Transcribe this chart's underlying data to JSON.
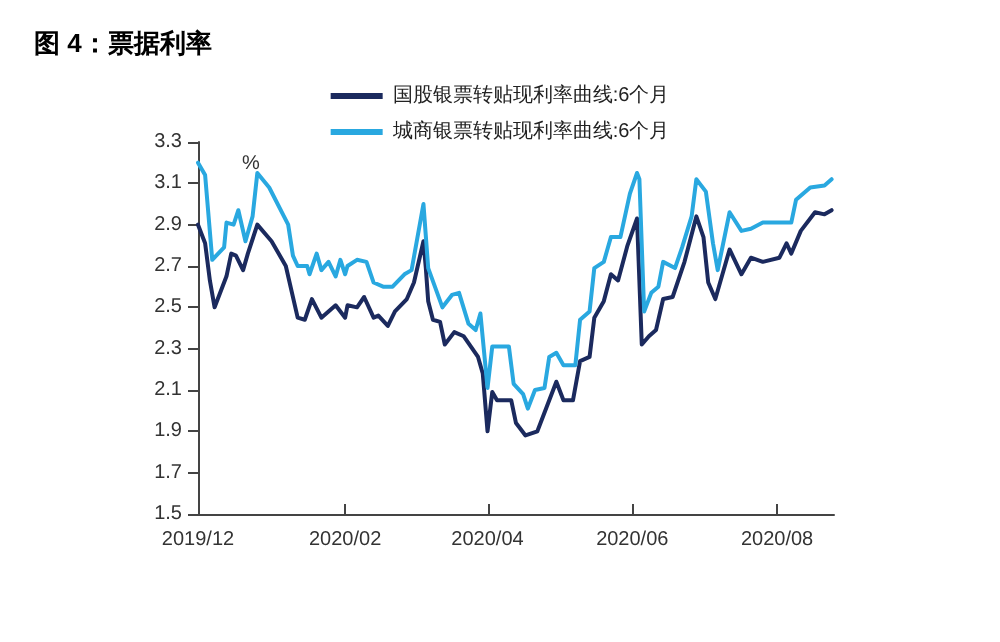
{
  "chart_data": {
    "type": "line",
    "title": "图 4：票据利率",
    "ylabel": "%",
    "legend": "top",
    "grid": false,
    "marker": "none",
    "line_style": "solid",
    "xlim": [
      "2019-12-01",
      "2020-08-25"
    ],
    "xticks": [
      {
        "value": "2019-12-01",
        "label": "2019/12"
      },
      {
        "value": "2020-02-01",
        "label": "2020/02"
      },
      {
        "value": "2020-04-01",
        "label": "2020/04"
      },
      {
        "value": "2020-06-01",
        "label": "2020/06"
      },
      {
        "value": "2020-08-01",
        "label": "2020/08"
      }
    ],
    "ylim": [
      1.5,
      3.3
    ],
    "yticks": [
      1.5,
      1.7,
      1.9,
      2.1,
      2.3,
      2.5,
      2.7,
      2.9,
      3.1,
      3.3
    ],
    "series": [
      {
        "name": "国股银票转贴现利率曲线:6个月",
        "color": "#1b2a5e",
        "x": [
          "2019-12-01",
          "2019-12-04",
          "2019-12-06",
          "2019-12-08",
          "2019-12-13",
          "2019-12-15",
          "2019-12-17",
          "2019-12-20",
          "2019-12-22",
          "2019-12-26",
          "2020-01-01",
          "2020-01-07",
          "2020-01-12",
          "2020-01-15",
          "2020-01-18",
          "2020-01-22",
          "2020-01-28",
          "2020-02-01",
          "2020-02-02",
          "2020-02-06",
          "2020-02-09",
          "2020-02-13",
          "2020-02-15",
          "2020-02-19",
          "2020-02-22",
          "2020-02-27",
          "2020-03-01",
          "2020-03-05",
          "2020-03-06",
          "2020-03-07",
          "2020-03-09",
          "2020-03-12",
          "2020-03-14",
          "2020-03-18",
          "2020-03-22",
          "2020-03-28",
          "2020-03-30",
          "2020-04-01",
          "2020-04-03",
          "2020-04-05",
          "2020-04-11",
          "2020-04-13",
          "2020-04-17",
          "2020-04-22",
          "2020-04-26",
          "2020-04-30",
          "2020-05-03",
          "2020-05-07",
          "2020-05-10",
          "2020-05-14",
          "2020-05-16",
          "2020-05-20",
          "2020-05-23",
          "2020-05-26",
          "2020-05-30",
          "2020-06-03",
          "2020-06-05",
          "2020-06-08",
          "2020-06-11",
          "2020-06-14",
          "2020-06-18",
          "2020-06-23",
          "2020-06-28",
          "2020-07-01",
          "2020-07-03",
          "2020-07-06",
          "2020-07-12",
          "2020-07-17",
          "2020-07-21",
          "2020-07-26",
          "2020-08-02",
          "2020-08-05",
          "2020-08-07",
          "2020-08-11",
          "2020-08-17",
          "2020-08-21",
          "2020-08-24"
        ],
        "values": [
          2.9,
          2.81,
          2.63,
          2.5,
          2.65,
          2.76,
          2.75,
          2.68,
          2.76,
          2.9,
          2.82,
          2.7,
          2.45,
          2.44,
          2.54,
          2.45,
          2.51,
          2.45,
          2.51,
          2.5,
          2.55,
          2.45,
          2.46,
          2.41,
          2.48,
          2.54,
          2.62,
          2.82,
          2.69,
          2.53,
          2.44,
          2.43,
          2.32,
          2.38,
          2.36,
          2.26,
          2.18,
          1.9,
          2.09,
          2.05,
          2.05,
          1.94,
          1.88,
          1.9,
          2.02,
          2.14,
          2.05,
          2.05,
          2.24,
          2.26,
          2.45,
          2.53,
          2.66,
          2.63,
          2.8,
          2.93,
          2.32,
          2.36,
          2.39,
          2.54,
          2.55,
          2.72,
          2.94,
          2.84,
          2.62,
          2.54,
          2.78,
          2.66,
          2.74,
          2.72,
          2.74,
          2.81,
          2.76,
          2.87,
          2.96,
          2.95,
          2.97
        ]
      },
      {
        "name": "城商银票转贴现利率曲线:6个月",
        "color": "#29a8e0",
        "x": [
          "2019-12-01",
          "2019-12-04",
          "2019-12-07",
          "2019-12-12",
          "2019-12-13",
          "2019-12-16",
          "2019-12-18",
          "2019-12-21",
          "2019-12-24",
          "2019-12-26",
          "2019-12-31",
          "2020-01-08",
          "2020-01-10",
          "2020-01-12",
          "2020-01-16",
          "2020-01-17",
          "2020-01-20",
          "2020-01-22",
          "2020-01-25",
          "2020-01-28",
          "2020-01-30",
          "2020-02-01",
          "2020-02-02",
          "2020-02-06",
          "2020-02-10",
          "2020-02-13",
          "2020-02-17",
          "2020-02-21",
          "2020-02-26",
          "2020-02-29",
          "2020-03-05",
          "2020-03-07",
          "2020-03-13",
          "2020-03-17",
          "2020-03-20",
          "2020-03-24",
          "2020-03-27",
          "2020-03-29",
          "2020-04-01",
          "2020-04-03",
          "2020-04-10",
          "2020-04-12",
          "2020-04-16",
          "2020-04-18",
          "2020-04-21",
          "2020-04-25",
          "2020-04-27",
          "2020-04-30",
          "2020-05-03",
          "2020-05-08",
          "2020-05-10",
          "2020-05-14",
          "2020-05-16",
          "2020-05-20",
          "2020-05-23",
          "2020-05-27",
          "2020-05-31",
          "2020-06-03",
          "2020-06-04",
          "2020-06-06",
          "2020-06-09",
          "2020-06-12",
          "2020-06-14",
          "2020-06-19",
          "2020-06-22",
          "2020-06-26",
          "2020-06-28",
          "2020-07-02",
          "2020-07-05",
          "2020-07-07",
          "2020-07-12",
          "2020-07-17",
          "2020-07-21",
          "2020-07-26",
          "2020-08-02",
          "2020-08-07",
          "2020-08-09",
          "2020-08-15",
          "2020-08-21",
          "2020-08-24"
        ],
        "values": [
          3.2,
          3.14,
          2.73,
          2.79,
          2.91,
          2.9,
          2.97,
          2.82,
          2.94,
          3.15,
          3.08,
          2.9,
          2.75,
          2.7,
          2.7,
          2.66,
          2.76,
          2.68,
          2.72,
          2.65,
          2.73,
          2.66,
          2.7,
          2.73,
          2.72,
          2.62,
          2.6,
          2.6,
          2.66,
          2.68,
          3.0,
          2.69,
          2.5,
          2.56,
          2.57,
          2.42,
          2.39,
          2.47,
          2.11,
          2.31,
          2.31,
          2.13,
          2.08,
          2.01,
          2.1,
          2.11,
          2.26,
          2.28,
          2.22,
          2.22,
          2.44,
          2.48,
          2.69,
          2.72,
          2.84,
          2.84,
          3.05,
          3.15,
          3.12,
          2.48,
          2.57,
          2.6,
          2.72,
          2.69,
          2.79,
          2.94,
          3.12,
          3.06,
          2.81,
          2.68,
          2.96,
          2.87,
          2.88,
          2.91,
          2.91,
          2.91,
          3.02,
          3.08,
          3.09,
          3.12
        ]
      }
    ]
  }
}
